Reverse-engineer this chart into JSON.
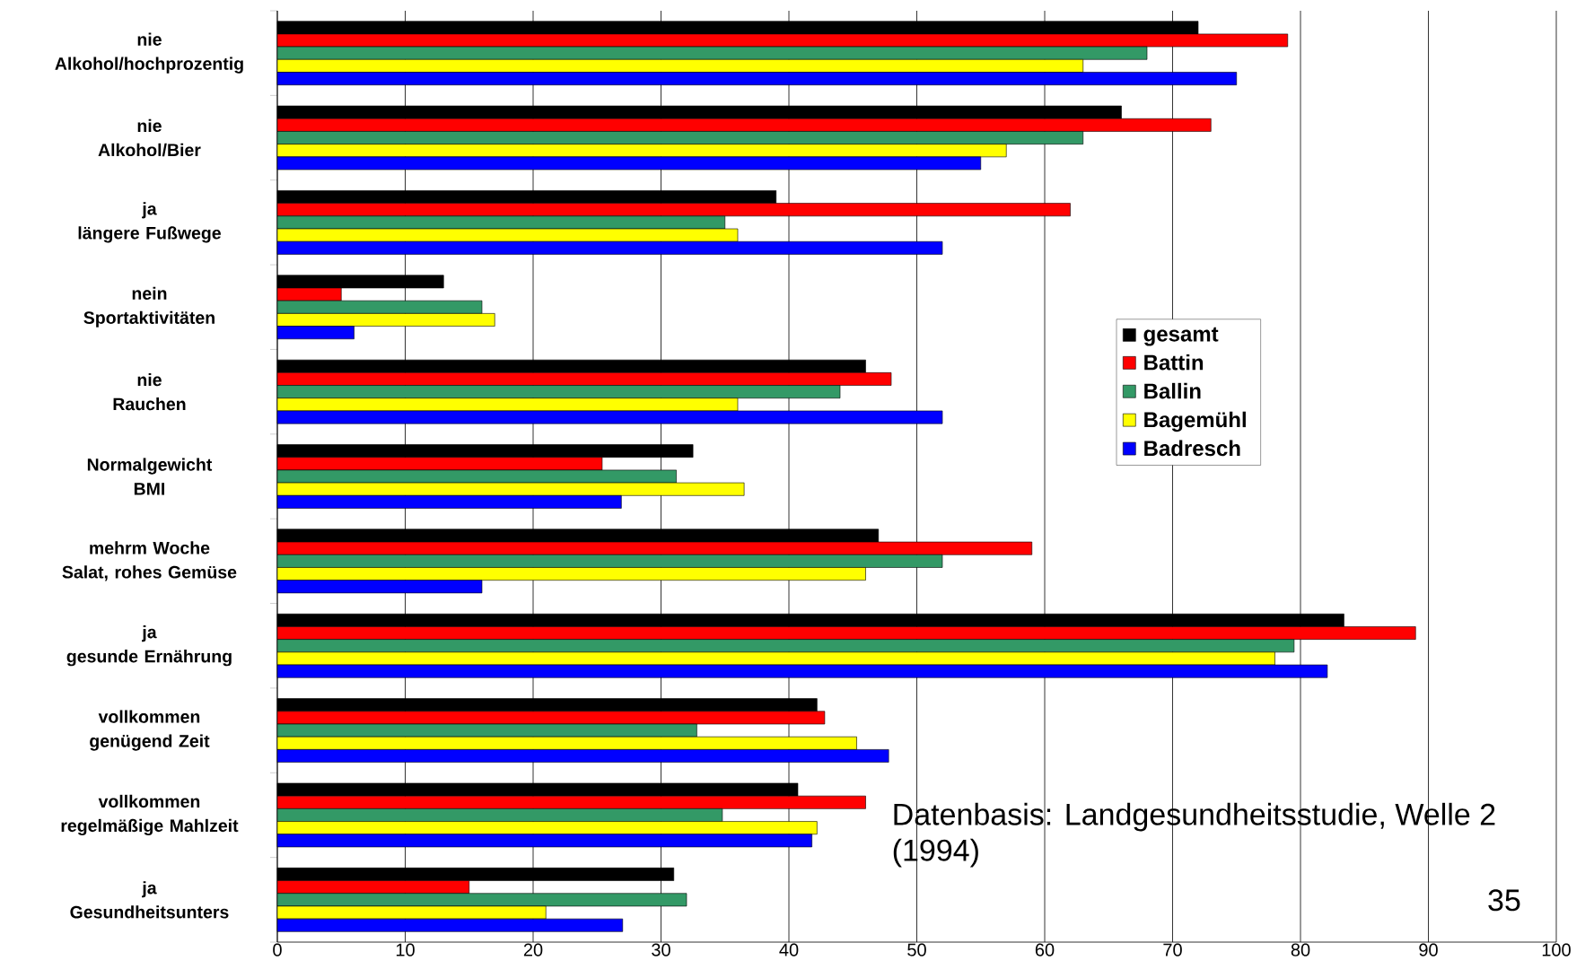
{
  "chart_data": {
    "type": "bar",
    "orientation": "horizontal",
    "categories": [
      "nie\nAlkohol/hochprozentig",
      "nie\nAlkohol/Bier",
      "ja\nlängere Fußwege",
      "nein\nSportaktivitäten",
      "nie\nRauchen",
      "Normalgewicht\nBMI",
      "mehrm Woche\nSalat, rohes Gemüse",
      "ja\ngesunde Ernährung",
      "vollkommen\ngenügend Zeit",
      "vollkommen\nregelmäßige Mahlzeit",
      "ja\nGesundheitsunters"
    ],
    "series": [
      {
        "name": "gesamt",
        "color": "#000000",
        "values": [
          72,
          66,
          39,
          13,
          46,
          32.5,
          47,
          83.4,
          42.2,
          40.7,
          31
        ]
      },
      {
        "name": "Battin",
        "color": "#ff0000",
        "values": [
          79,
          73,
          62,
          5,
          48,
          25.4,
          59,
          89,
          42.8,
          46,
          15
        ]
      },
      {
        "name": "Ballin",
        "color": "#339966",
        "values": [
          68,
          63,
          35,
          16,
          44,
          31.2,
          52,
          79.5,
          32.8,
          34.8,
          32
        ]
      },
      {
        "name": "Bagemühl",
        "color": "#ffff00",
        "values": [
          63,
          57,
          36,
          17,
          36,
          36.5,
          46,
          78,
          45.3,
          42.2,
          21
        ]
      },
      {
        "name": "Badresch",
        "color": "#0000ff",
        "values": [
          75,
          55,
          52,
          6,
          52,
          26.9,
          16,
          82.1,
          47.8,
          41.8,
          27
        ]
      }
    ],
    "xlim": [
      0,
      100
    ],
    "xticks": [
      0,
      10,
      20,
      30,
      40,
      50,
      60,
      70,
      80,
      90,
      100
    ],
    "grid": "x",
    "legend": "right",
    "annotations": [
      "Datenbasis: Landgesundheitsstudie, Welle 2 (1994)",
      "35"
    ]
  }
}
